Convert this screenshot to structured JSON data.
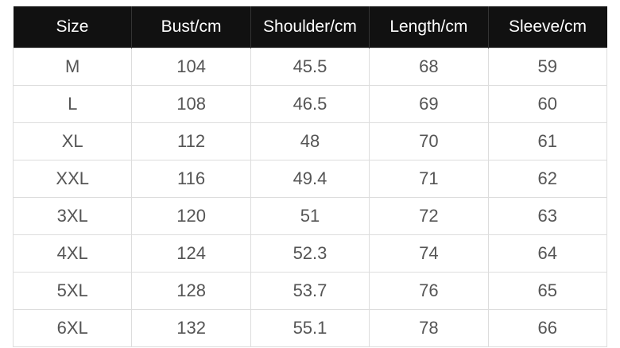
{
  "table": {
    "headers": [
      "Size",
      "Bust/cm",
      "Shoulder/cm",
      "Length/cm",
      "Sleeve/cm"
    ],
    "rows": [
      [
        "M",
        "104",
        "45.5",
        "68",
        "59"
      ],
      [
        "L",
        "108",
        "46.5",
        "69",
        "60"
      ],
      [
        "XL",
        "112",
        "48",
        "70",
        "61"
      ],
      [
        "XXL",
        "116",
        "49.4",
        "71",
        "62"
      ],
      [
        "3XL",
        "120",
        "51",
        "72",
        "63"
      ],
      [
        "4XL",
        "124",
        "52.3",
        "74",
        "64"
      ],
      [
        "5XL",
        "128",
        "53.7",
        "76",
        "65"
      ],
      [
        "6XL",
        "132",
        "55.1",
        "78",
        "66"
      ]
    ]
  }
}
